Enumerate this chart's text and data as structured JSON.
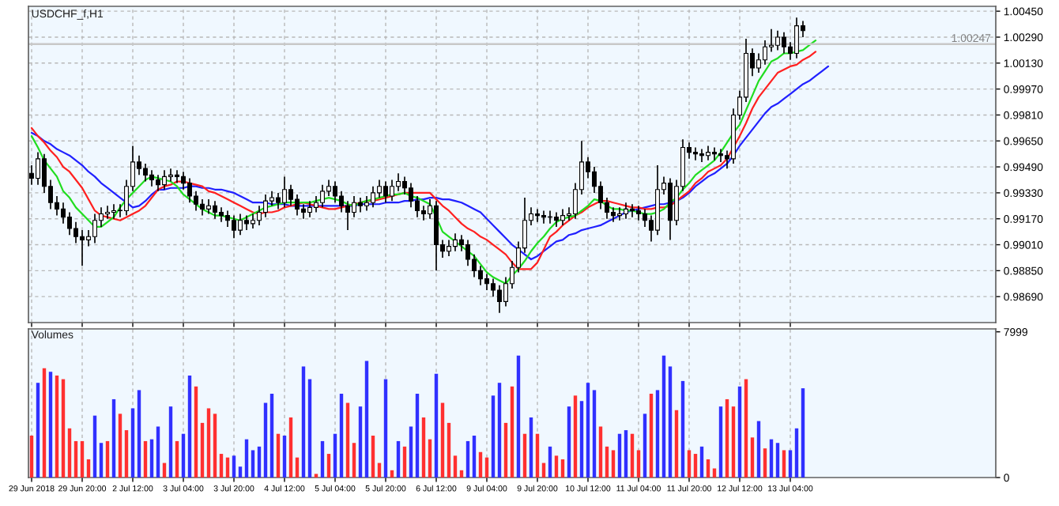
{
  "chart_data": [
    {
      "type": "candlestick",
      "title": "USDCHF_f,H1",
      "categories": [
        null,
        null,
        null,
        null,
        null,
        null,
        null,
        null,
        null,
        null,
        null,
        null,
        null,
        null,
        null,
        null,
        null,
        null,
        null,
        null,
        null,
        null,
        null,
        null,
        null,
        null,
        null,
        null,
        null,
        null,
        null,
        null,
        null,
        null,
        null,
        null,
        null,
        null,
        null,
        null,
        null,
        null,
        null,
        null,
        null,
        null,
        null,
        null,
        null,
        null,
        null,
        null,
        null,
        null,
        null,
        null,
        null,
        null,
        null,
        null,
        null,
        null,
        null,
        null,
        null,
        null,
        null,
        null,
        null,
        null,
        null,
        null,
        null,
        null,
        null,
        null,
        null,
        null,
        null,
        null,
        null,
        null,
        null,
        null,
        null,
        null,
        null,
        null,
        null,
        null,
        null,
        null,
        null,
        null,
        null,
        null,
        null,
        null,
        null,
        null,
        null,
        null,
        null,
        null,
        null,
        null,
        null,
        null,
        null,
        null,
        null,
        null,
        null,
        null,
        null,
        null,
        null,
        null,
        null,
        null,
        null,
        null,
        null,
        null,
        null,
        null,
        null,
        null,
        null,
        null,
        null,
        null,
        null,
        null,
        null,
        null,
        null,
        null,
        null,
        null,
        null,
        null,
        null,
        null,
        null,
        null,
        null,
        null,
        null,
        null,
        null,
        null,
        null
      ],
      "ohlc": [
        [
          0.9945,
          0.995,
          0.9938,
          0.9942
        ],
        [
          0.9942,
          0.9958,
          0.9938,
          0.9954
        ],
        [
          0.9954,
          0.9957,
          0.9933,
          0.9937
        ],
        [
          0.9937,
          0.9941,
          0.9923,
          0.9927
        ],
        [
          0.9927,
          0.9931,
          0.9919,
          0.9923
        ],
        [
          0.9923,
          0.9927,
          0.9914,
          0.9918
        ],
        [
          0.9918,
          0.9921,
          0.9907,
          0.9911
        ],
        [
          0.9911,
          0.9915,
          0.9902,
          0.9906
        ],
        [
          0.9906,
          0.991,
          0.9888,
          0.9904
        ],
        [
          0.9904,
          0.991,
          0.99,
          0.9906
        ],
        [
          0.9906,
          0.992,
          0.9902,
          0.9916
        ],
        [
          0.9916,
          0.9924,
          0.9912,
          0.992
        ],
        [
          0.992,
          0.9925,
          0.9917,
          0.9921
        ],
        [
          0.9921,
          0.9926,
          0.9917,
          0.9922
        ],
        [
          0.9922,
          0.9926,
          0.9918,
          0.9922
        ],
        [
          0.9922,
          0.9941,
          0.9919,
          0.9937
        ],
        [
          0.9937,
          0.9962,
          0.9934,
          0.9952
        ],
        [
          0.9952,
          0.9956,
          0.9944,
          0.9948
        ],
        [
          0.9948,
          0.9951,
          0.994,
          0.9944
        ],
        [
          0.9944,
          0.9947,
          0.9937,
          0.9941
        ],
        [
          0.9941,
          0.9944,
          0.9934,
          0.9938
        ],
        [
          0.9938,
          0.9947,
          0.9935,
          0.9943
        ],
        [
          0.9943,
          0.9948,
          0.994,
          0.9944
        ],
        [
          0.9944,
          0.9947,
          0.9939,
          0.9943
        ],
        [
          0.9943,
          0.9946,
          0.9935,
          0.9939
        ],
        [
          0.9939,
          0.9942,
          0.9927,
          0.9931
        ],
        [
          0.9931,
          0.9934,
          0.9922,
          0.9926
        ],
        [
          0.9926,
          0.9929,
          0.9919,
          0.9923
        ],
        [
          0.9923,
          0.9929,
          0.992,
          0.9925
        ],
        [
          0.9925,
          0.9928,
          0.9917,
          0.9921
        ],
        [
          0.9921,
          0.9924,
          0.9915,
          0.9919
        ],
        [
          0.9919,
          0.9922,
          0.9912,
          0.9916
        ],
        [
          0.9916,
          0.9919,
          0.9905,
          0.991
        ],
        [
          0.991,
          0.992,
          0.9907,
          0.9916
        ],
        [
          0.9916,
          0.9919,
          0.991,
          0.9914
        ],
        [
          0.9914,
          0.992,
          0.9911,
          0.9916
        ],
        [
          0.9916,
          0.9925,
          0.9913,
          0.9921
        ],
        [
          0.9921,
          0.9932,
          0.9918,
          0.9928
        ],
        [
          0.9928,
          0.9934,
          0.9925,
          0.993
        ],
        [
          0.993,
          0.9933,
          0.9923,
          0.9927
        ],
        [
          0.9927,
          0.9943,
          0.9924,
          0.9935
        ],
        [
          0.9935,
          0.9938,
          0.9925,
          0.9929
        ],
        [
          0.9929,
          0.9932,
          0.9919,
          0.9923
        ],
        [
          0.9923,
          0.9926,
          0.9917,
          0.9921
        ],
        [
          0.9921,
          0.9928,
          0.9918,
          0.9924
        ],
        [
          0.9924,
          0.9931,
          0.9921,
          0.9927
        ],
        [
          0.9927,
          0.9938,
          0.9924,
          0.9934
        ],
        [
          0.9934,
          0.9941,
          0.9931,
          0.9937
        ],
        [
          0.9937,
          0.994,
          0.9927,
          0.9931
        ],
        [
          0.9931,
          0.9934,
          0.9921,
          0.9925
        ],
        [
          0.9925,
          0.9928,
          0.991,
          0.9921
        ],
        [
          0.9921,
          0.9931,
          0.9918,
          0.9927
        ],
        [
          0.9927,
          0.993,
          0.9921,
          0.9925
        ],
        [
          0.9925,
          0.9931,
          0.9922,
          0.9927
        ],
        [
          0.9927,
          0.9937,
          0.9924,
          0.9933
        ],
        [
          0.9933,
          0.9941,
          0.993,
          0.9937
        ],
        [
          0.9937,
          0.994,
          0.9927,
          0.9931
        ],
        [
          0.9931,
          0.9941,
          0.9928,
          0.9937
        ],
        [
          0.9937,
          0.9945,
          0.9934,
          0.994
        ],
        [
          0.994,
          0.9943,
          0.9932,
          0.9936
        ],
        [
          0.9936,
          0.9939,
          0.9924,
          0.9928
        ],
        [
          0.9928,
          0.9931,
          0.9918,
          0.9922
        ],
        [
          0.9922,
          0.9925,
          0.9916,
          0.992
        ],
        [
          0.992,
          0.9929,
          0.9917,
          0.9925
        ],
        [
          0.9925,
          0.9928,
          0.9885,
          0.9901
        ],
        [
          0.9901,
          0.9904,
          0.9893,
          0.9897
        ],
        [
          0.9897,
          0.9904,
          0.9894,
          0.99
        ],
        [
          0.99,
          0.9908,
          0.9897,
          0.9904
        ],
        [
          0.9904,
          0.9907,
          0.9897,
          0.9901
        ],
        [
          0.9901,
          0.9904,
          0.9888,
          0.9892
        ],
        [
          0.9892,
          0.9895,
          0.9881,
          0.9885
        ],
        [
          0.9885,
          0.9888,
          0.9876,
          0.988
        ],
        [
          0.988,
          0.9883,
          0.9873,
          0.9877
        ],
        [
          0.9877,
          0.988,
          0.9869,
          0.9873
        ],
        [
          0.9873,
          0.9876,
          0.9859,
          0.9866
        ],
        [
          0.9866,
          0.9881,
          0.9863,
          0.9877
        ],
        [
          0.9877,
          0.9891,
          0.9874,
          0.9887
        ],
        [
          0.9887,
          0.9903,
          0.9884,
          0.9899
        ],
        [
          0.9899,
          0.993,
          0.9896,
          0.9916
        ],
        [
          0.9916,
          0.9924,
          0.9913,
          0.992
        ],
        [
          0.992,
          0.9923,
          0.9915,
          0.9919
        ],
        [
          0.9919,
          0.9922,
          0.9914,
          0.9918
        ],
        [
          0.9918,
          0.9922,
          0.9914,
          0.9918
        ],
        [
          0.9918,
          0.9921,
          0.9912,
          0.9916
        ],
        [
          0.9916,
          0.9923,
          0.9913,
          0.9919
        ],
        [
          0.9919,
          0.9924,
          0.9916,
          0.992
        ],
        [
          0.992,
          0.9939,
          0.9917,
          0.9935
        ],
        [
          0.9935,
          0.9965,
          0.9932,
          0.9952
        ],
        [
          0.9952,
          0.9955,
          0.9942,
          0.9946
        ],
        [
          0.9946,
          0.9949,
          0.9933,
          0.9937
        ],
        [
          0.9937,
          0.994,
          0.9923,
          0.9927
        ],
        [
          0.9927,
          0.993,
          0.9917,
          0.9921
        ],
        [
          0.9921,
          0.9924,
          0.9915,
          0.9919
        ],
        [
          0.9919,
          0.9924,
          0.9916,
          0.992
        ],
        [
          0.992,
          0.9927,
          0.9917,
          0.9923
        ],
        [
          0.9923,
          0.9926,
          0.9918,
          0.9922
        ],
        [
          0.9922,
          0.9925,
          0.9916,
          0.992
        ],
        [
          0.992,
          0.9923,
          0.9912,
          0.9916
        ],
        [
          0.9916,
          0.9919,
          0.9903,
          0.991
        ],
        [
          0.991,
          0.995,
          0.9907,
          0.9935
        ],
        [
          0.9935,
          0.9943,
          0.9932,
          0.9939
        ],
        [
          0.9939,
          0.9942,
          0.9904,
          0.9916
        ],
        [
          0.9916,
          0.9941,
          0.9913,
          0.9937
        ],
        [
          0.9937,
          0.9966,
          0.9934,
          0.9961
        ],
        [
          0.9961,
          0.9964,
          0.9954,
          0.9958
        ],
        [
          0.9958,
          0.9961,
          0.9953,
          0.9957
        ],
        [
          0.9957,
          0.996,
          0.9952,
          0.9956
        ],
        [
          0.9956,
          0.9962,
          0.9953,
          0.9958
        ],
        [
          0.9958,
          0.9961,
          0.9953,
          0.9957
        ],
        [
          0.9957,
          0.996,
          0.9952,
          0.9956
        ],
        [
          0.9956,
          0.9959,
          0.9948,
          0.9954
        ],
        [
          0.9954,
          0.9985,
          0.9951,
          0.9981
        ],
        [
          0.9981,
          0.9996,
          0.9978,
          0.9992
        ],
        [
          0.9992,
          1.0028,
          0.9989,
          1.0019
        ],
        [
          1.0019,
          1.0022,
          1.0005,
          1.001
        ],
        [
          1.001,
          1.0019,
          1.0007,
          1.0015
        ],
        [
          1.0015,
          1.0027,
          1.0012,
          1.0023
        ],
        [
          1.0023,
          1.0034,
          1.002,
          1.0024
        ],
        [
          1.0024,
          1.0033,
          1.0021,
          1.0029
        ],
        [
          1.0029,
          1.0032,
          1.0019,
          1.0023
        ],
        [
          1.0023,
          1.0026,
          1.0015,
          1.0019
        ],
        [
          1.0019,
          1.0041,
          1.0016,
          1.0036
        ],
        [
          1.0036,
          1.0039,
          1.0029,
          1.0033
        ],
        null,
        null,
        null,
        null,
        null,
        null,
        null,
        null,
        null,
        null,
        null,
        null,
        null,
        null,
        null,
        null,
        null,
        null,
        null,
        null,
        null,
        null,
        null,
        null,
        null,
        null,
        null,
        null,
        null,
        null
      ],
      "series": [
        {
          "type": "line",
          "color": "#2020ff",
          "values": [
            0.997,
            0.9968,
            0.9965,
            0.9963,
            0.996,
            0.9958,
            0.9956,
            0.9953,
            0.995,
            0.9946,
            0.9943,
            0.9939,
            0.9936,
            0.9933,
            0.993,
            0.9927,
            0.9924,
            0.9925,
            0.9928,
            0.9932,
            0.9935,
            0.9935,
            0.9936,
            0.9936,
            0.9936,
            0.9937,
            0.9937,
            0.9936,
            0.9936,
            0.9935,
            0.9935,
            0.9934,
            0.9933,
            0.9931,
            0.9929,
            0.9927,
            0.9927,
            0.9927,
            0.9926,
            0.9926,
            0.9926,
            0.9925,
            0.9925,
            0.9925,
            0.9925,
            0.9925,
            0.9925,
            0.9925,
            0.9925,
            0.9925,
            0.9925,
            0.9925,
            0.9926,
            0.9926,
            0.9926,
            0.9926,
            0.9927,
            0.9927,
            0.9927,
            0.9928,
            0.9928,
            0.9929,
            0.9929,
            0.993,
            0.993,
            0.9929,
            0.9929,
            0.9928,
            0.9927,
            0.9925,
            0.9923,
            0.9921,
            0.9917,
            0.9913,
            0.9909,
            0.9905,
            0.9901,
            0.9898,
            0.9895,
            0.9892,
            0.9894,
            0.9897,
            0.99,
            0.9903,
            0.9904,
            0.9907,
            0.9908,
            0.991,
            0.9911,
            0.9912,
            0.9913,
            0.9915,
            0.9917,
            0.9919,
            0.9921,
            0.9922,
            0.9923,
            0.9924,
            0.9925,
            0.9926,
            0.9926,
            0.9927,
            0.9928,
            0.993,
            0.9933,
            0.9937,
            0.994,
            0.9943,
            0.9945,
            0.9948,
            0.9951,
            0.9956,
            0.9962,
            0.9967,
            0.9972,
            0.9977,
            0.9982,
            0.9986,
            0.9988,
            0.9991,
            0.9994,
            0.9997,
            1.0,
            1.0002,
            1.0005,
            1.0008,
            1.0011,
            null,
            null,
            null,
            null,
            null,
            null,
            null,
            null,
            null,
            null,
            null,
            null,
            null,
            null,
            null,
            null,
            null,
            null,
            null,
            null,
            null,
            null,
            null,
            null,
            null,
            null
          ]
        },
        {
          "type": "line",
          "color": "#ff2020",
          "values": [
            0.9973,
            0.9968,
            0.9964,
            0.9959,
            0.9955,
            0.9949,
            0.9946,
            0.9941,
            0.9936,
            0.9929,
            0.9922,
            0.9919,
            0.9918,
            0.9917,
            0.9916,
            0.9918,
            0.992,
            0.9922,
            0.9925,
            0.993,
            0.9935,
            0.9937,
            0.9938,
            0.994,
            0.994,
            0.9939,
            0.9938,
            0.9937,
            0.9934,
            0.9933,
            0.9931,
            0.9929,
            0.9927,
            0.9925,
            0.9923,
            0.9921,
            0.992,
            0.9921,
            0.9921,
            0.9922,
            0.9924,
            0.9925,
            0.9926,
            0.9927,
            0.9926,
            0.9925,
            0.9924,
            0.9923,
            0.9923,
            0.9924,
            0.9925,
            0.9926,
            0.9927,
            0.9928,
            0.9928,
            0.9929,
            0.993,
            0.9931,
            0.9932,
            0.9933,
            0.9933,
            0.9933,
            0.9933,
            0.9933,
            0.9929,
            0.9925,
            0.9922,
            0.9918,
            0.9914,
            0.9911,
            0.9909,
            0.9906,
            0.9904,
            0.9901,
            0.9898,
            0.9895,
            0.989,
            0.9886,
            0.9886,
            0.9886,
            0.989,
            0.9898,
            0.9906,
            0.9909,
            0.9913,
            0.9916,
            0.9919,
            0.9921,
            0.9924,
            0.9926,
            0.9928,
            0.9928,
            0.9927,
            0.9926,
            0.9925,
            0.9924,
            0.9924,
            0.9923,
            0.9923,
            0.9924,
            0.9924,
            0.9925,
            0.9928,
            0.9931,
            0.9934,
            0.9939,
            0.9942,
            0.9946,
            0.9948,
            0.995,
            0.9954,
            0.9961,
            0.9968,
            0.9976,
            0.9985,
            0.9992,
            0.9997,
            1.0002,
            1.0007,
            1.0009,
            1.0011,
            1.0012,
            1.0015,
            1.0017,
            1.002,
            null,
            null,
            null,
            null,
            null,
            null,
            null,
            null,
            null,
            null,
            null,
            null,
            null,
            null,
            null,
            null,
            null,
            null,
            null,
            null,
            null,
            null,
            null,
            null,
            null,
            null,
            null,
            null
          ]
        },
        {
          "type": "line",
          "color": "#20dd20",
          "values": [
            0.9968,
            0.9961,
            0.9953,
            0.9948,
            0.9943,
            0.9934,
            0.993,
            0.9924,
            0.992,
            0.9916,
            0.9912,
            0.9912,
            0.9915,
            0.9918,
            0.9924,
            0.9929,
            0.9933,
            0.9937,
            0.9941,
            0.9943,
            0.9942,
            0.9941,
            0.994,
            0.9937,
            0.9932,
            0.9929,
            0.9926,
            0.9923,
            0.9921,
            0.9919,
            0.9919,
            0.9918,
            0.9917,
            0.9916,
            0.9918,
            0.992,
            0.9922,
            0.9924,
            0.9925,
            0.9926,
            0.9927,
            0.9927,
            0.9927,
            0.9927,
            0.9927,
            0.9928,
            0.9929,
            0.993,
            0.9929,
            0.9928,
            0.9926,
            0.9925,
            0.9927,
            0.9928,
            0.9929,
            0.993,
            0.9931,
            0.9932,
            0.9932,
            0.9933,
            0.9931,
            0.993,
            0.9928,
            0.9926,
            0.9918,
            0.9909,
            0.9906,
            0.9903,
            0.99,
            0.9897,
            0.9894,
            0.9889,
            0.9884,
            0.9881,
            0.9879,
            0.9877,
            0.9882,
            0.9886,
            0.9891,
            0.9897,
            0.9902,
            0.9906,
            0.9911,
            0.9915,
            0.9917,
            0.9918,
            0.9919,
            0.9922,
            0.9925,
            0.9929,
            0.9928,
            0.9925,
            0.9923,
            0.9923,
            0.9922,
            0.9922,
            0.9921,
            0.992,
            0.992,
            0.9921,
            0.9923,
            0.9927,
            0.993,
            0.9935,
            0.9939,
            0.9944,
            0.9947,
            0.995,
            0.9953,
            0.9958,
            0.9964,
            0.997,
            0.9975,
            0.9984,
            0.9993,
            1.0002,
            1.0008,
            1.0014,
            1.0016,
            1.0019,
            1.0019,
            1.002,
            1.0021,
            1.0024,
            1.0027,
            null,
            null,
            null,
            null,
            null,
            null,
            null,
            null,
            null,
            null,
            null,
            null,
            null,
            null,
            null,
            null,
            null,
            null,
            null,
            null,
            null,
            null,
            null,
            null,
            null,
            null,
            null,
            null
          ]
        }
      ],
      "ylim": [
        0.9853,
        1.0048
      ],
      "yticks": [
        {
          "value": 0.9869,
          "label": "0.98690"
        },
        {
          "value": 0.9885,
          "label": "0.98850"
        },
        {
          "value": 0.9901,
          "label": "0.99010"
        },
        {
          "value": 0.9917,
          "label": "0.99170"
        },
        {
          "value": 0.9933,
          "label": "0.99330"
        },
        {
          "value": 0.9949,
          "label": "0.99490"
        },
        {
          "value": 0.9965,
          "label": "0.99650"
        },
        {
          "value": 0.9981,
          "label": "0.99810"
        },
        {
          "value": 0.9997,
          "label": "0.99970"
        },
        {
          "value": 1.0013,
          "label": "1.00130"
        },
        {
          "value": 1.0029,
          "label": "1.00290"
        },
        {
          "value": 1.0045,
          "label": "1.00450"
        }
      ],
      "tick_labels": "y",
      "grid": true,
      "ref_lines": [
        {
          "axis": "y",
          "value": 1.00247,
          "label": "1.00247",
          "color": "#c8c8c8",
          "line_style": "solid"
        }
      ]
    },
    {
      "type": "bar",
      "title": "Volumes",
      "categories": [
        "29 Jun 2018",
        null,
        null,
        null,
        null,
        null,
        null,
        null,
        "29 Jun 20:00",
        null,
        null,
        null,
        null,
        null,
        null,
        null,
        "2 Jul 12:00",
        null,
        null,
        null,
        null,
        null,
        null,
        null,
        "3 Jul 04:00",
        null,
        null,
        null,
        null,
        null,
        null,
        null,
        "3 Jul 20:00",
        null,
        null,
        null,
        null,
        null,
        null,
        null,
        "4 Jul 12:00",
        null,
        null,
        null,
        null,
        null,
        null,
        null,
        "5 Jul 04:00",
        null,
        null,
        null,
        null,
        null,
        null,
        null,
        "5 Jul 20:00",
        null,
        null,
        null,
        null,
        null,
        null,
        null,
        "6 Jul 12:00",
        null,
        null,
        null,
        null,
        null,
        null,
        null,
        "9 Jul 04:00",
        null,
        null,
        null,
        null,
        null,
        null,
        null,
        "9 Jul 20:00",
        null,
        null,
        null,
        null,
        null,
        null,
        null,
        "10 Jul 12:00",
        null,
        null,
        null,
        null,
        null,
        null,
        null,
        "11 Jul 04:00",
        null,
        null,
        null,
        null,
        null,
        null,
        null,
        "11 Jul 20:00",
        null,
        null,
        null,
        null,
        null,
        null,
        null,
        "12 Jul 12:00",
        null,
        null,
        null,
        null,
        null,
        null,
        null,
        "13 Jul 04:00",
        null,
        null,
        null,
        null,
        null,
        null,
        null,
        null,
        null,
        null,
        null,
        null,
        null,
        null,
        null,
        null,
        null,
        null,
        null,
        null,
        null,
        null,
        null,
        null,
        null,
        null,
        null,
        null,
        null,
        null,
        null,
        null
      ],
      "values": [
        2300,
        5200,
        6000,
        5800,
        5600,
        5400,
        2700,
        2000,
        2000,
        1000,
        3400,
        1900,
        2000,
        4300,
        3500,
        2600,
        3800,
        4800,
        2000,
        2100,
        2800,
        800,
        3900,
        2000,
        2400,
        5600,
        5000,
        3000,
        3800,
        3500,
        1300,
        1100,
        1200,
        600,
        2100,
        1500,
        1700,
        4100,
        4600,
        2400,
        2300,
        3300,
        1100,
        6100,
        5400,
        200,
        2000,
        1300,
        2400,
        4600,
        4100,
        1900,
        3900,
        6400,
        2300,
        800,
        5400,
        400,
        2000,
        1700,
        2800,
        4600,
        3300,
        2100,
        5700,
        4100,
        3000,
        1200,
        400,
        2000,
        2300,
        1400,
        1100,
        4500,
        5200,
        3000,
        5000,
        6700,
        2400,
        3300,
        2400,
        800,
        1700,
        1200,
        1000,
        3900,
        4500,
        4200,
        5200,
        4800,
        2800,
        1700,
        1500,
        2400,
        2600,
        2400,
        1500,
        3500,
        4600,
        4800,
        6700,
        6100,
        3700,
        5300,
        1500,
        1300,
        1700,
        1000,
        500,
        3900,
        4300,
        3900,
        5000,
        5400,
        2200,
        3100,
        1600,
        2100,
        1900,
        1500,
        1500,
        2700,
        4900,
        null,
        null,
        null,
        null,
        null,
        null,
        null,
        null,
        null,
        null,
        null,
        null,
        null,
        null,
        null,
        null,
        null,
        null,
        null,
        null,
        null,
        null,
        null,
        null,
        null,
        null,
        null,
        null,
        null,
        null
      ],
      "colors": [
        "#ff3030",
        "#3030ff",
        "#ff3030",
        "#3030ff",
        "#ff3030",
        "#ff3030",
        "#ff3030",
        "#ff3030",
        "#ff3030",
        "#ff3030",
        "#3030ff",
        "#3030ff",
        "#ff3030",
        "#3030ff",
        "#ff3030",
        "#ff3030",
        "#3030ff",
        "#3030ff",
        "#ff3030",
        "#3030ff",
        "#3030ff",
        "#ff3030",
        "#3030ff",
        "#ff3030",
        "#3030ff",
        "#3030ff",
        "#ff3030",
        "#ff3030",
        "#ff3030",
        "#ff3030",
        "#ff3030",
        "#ff3030",
        "#3030ff",
        "#3030ff",
        "#3030ff",
        "#3030ff",
        "#3030ff",
        "#3030ff",
        "#3030ff",
        "#ff3030",
        "#3030ff",
        "#ff3030",
        "#ff3030",
        "#3030ff",
        "#3030ff",
        "#ff3030",
        "#3030ff",
        "#ff3030",
        "#3030ff",
        "#3030ff",
        "#ff3030",
        "#ff3030",
        "#3030ff",
        "#3030ff",
        "#ff3030",
        "#ff3030",
        "#3030ff",
        "#ff3030",
        "#3030ff",
        "#ff3030",
        "#3030ff",
        "#3030ff",
        "#ff3030",
        "#ff3030",
        "#3030ff",
        "#ff3030",
        "#ff3030",
        "#ff3030",
        "#ff3030",
        "#3030ff",
        "#3030ff",
        "#ff3030",
        "#ff3030",
        "#3030ff",
        "#3030ff",
        "#ff3030",
        "#ff3030",
        "#3030ff",
        "#ff3030",
        "#3030ff",
        "#ff3030",
        "#ff3030",
        "#3030ff",
        "#ff3030",
        "#ff3030",
        "#3030ff",
        "#ff3030",
        "#3030ff",
        "#3030ff",
        "#3030ff",
        "#ff3030",
        "#ff3030",
        "#ff3030",
        "#3030ff",
        "#3030ff",
        "#ff3030",
        "#ff3030",
        "#3030ff",
        "#ff3030",
        "#3030ff",
        "#3030ff",
        "#3030ff",
        "#ff3030",
        "#3030ff",
        "#ff3030",
        "#ff3030",
        "#3030ff",
        "#ff3030",
        "#ff3030",
        "#3030ff",
        "#ff3030",
        "#ff3030",
        "#3030ff",
        "#ff3030",
        "#ff3030",
        "#3030ff",
        "#ff3030",
        "#3030ff",
        "#3030ff",
        "#ff3030",
        "#3030ff",
        "#3030ff",
        "#3030ff",
        null,
        null,
        null,
        null,
        null,
        null,
        null,
        null,
        null,
        null,
        null,
        null,
        null,
        null,
        null,
        null,
        null,
        null,
        null,
        null,
        null,
        null,
        null,
        null,
        null,
        null,
        null,
        null,
        null,
        null
      ],
      "ylim": [
        0,
        8160
      ],
      "yticks": [
        0,
        7999
      ],
      "grid": "x"
    }
  ]
}
